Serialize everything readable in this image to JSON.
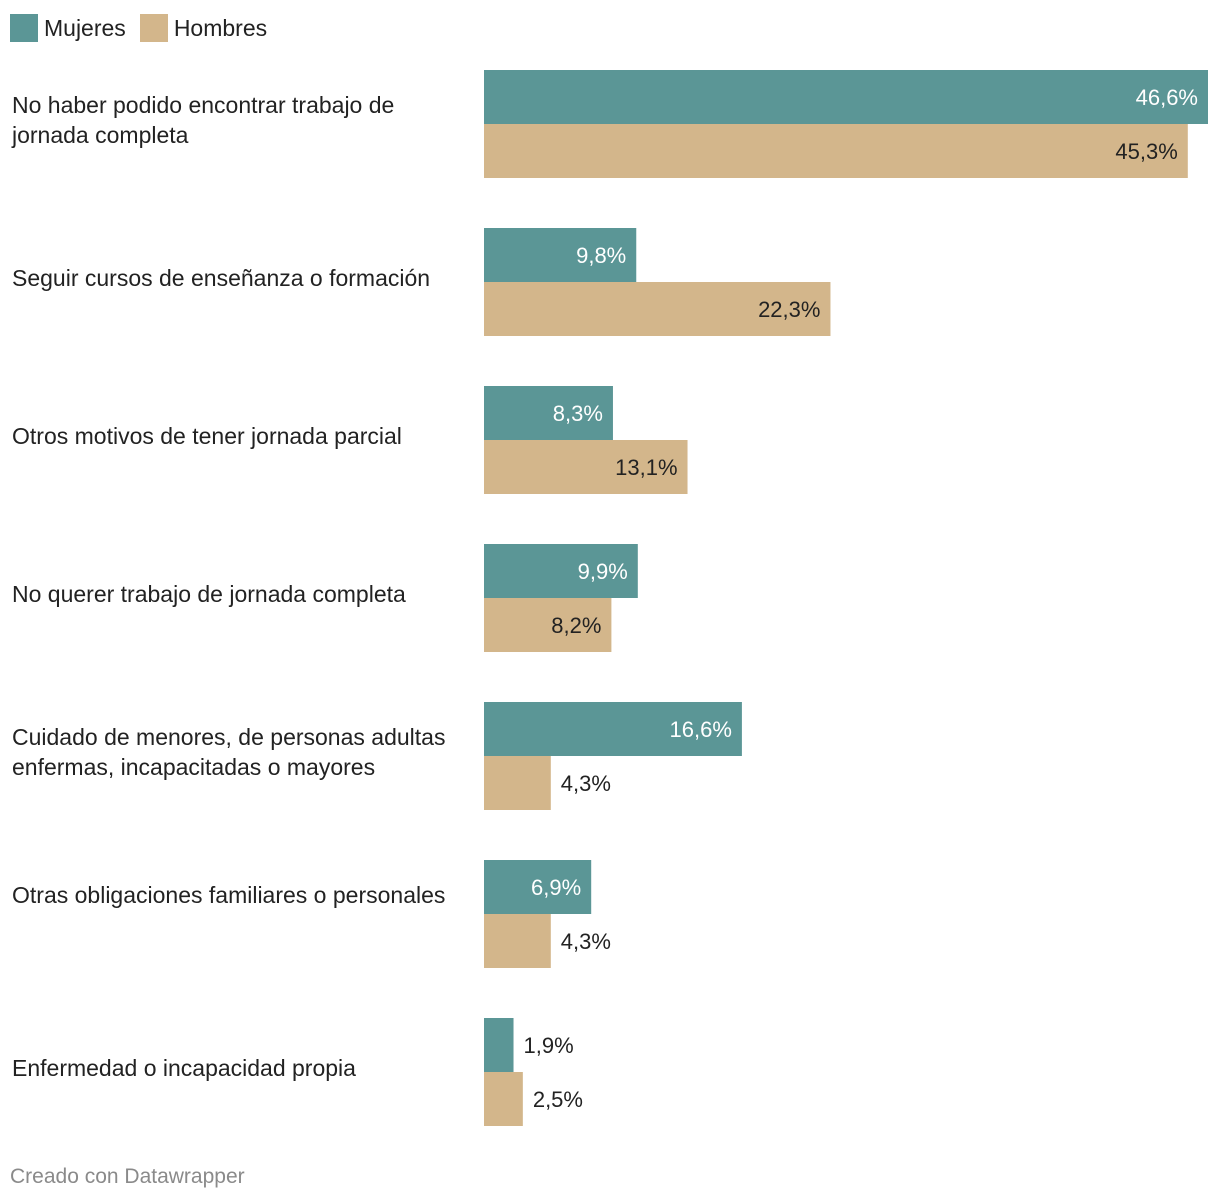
{
  "chart_data": {
    "type": "bar",
    "orientation": "horizontal",
    "legend": "top-left",
    "categories": [
      "No haber podido encontrar trabajo de jornada completa",
      "Seguir cursos de enseñanza o formación",
      "Otros motivos de tener jornada parcial",
      "No querer trabajo de jornada completa",
      "Cuidado de menores, de personas adultas enfermas, incapacitadas o mayores",
      "Otras obligaciones familiares o personales",
      "Enfermedad o incapacidad propia"
    ],
    "series": [
      {
        "name": "Mujeres",
        "color": "#5b9696",
        "values": [
          46.6,
          9.8,
          8.3,
          9.9,
          16.6,
          6.9,
          1.9
        ],
        "labels": [
          "46,6%",
          "9,8%",
          "8,3%",
          "9,9%",
          "16,6%",
          "6,9%",
          "1,9%"
        ]
      },
      {
        "name": "Hombres",
        "color": "#d3b68b",
        "values": [
          45.3,
          22.3,
          13.1,
          8.2,
          4.3,
          4.3,
          2.5
        ],
        "labels": [
          "45,3%",
          "22,3%",
          "13,1%",
          "8,2%",
          "4,3%",
          "4,3%",
          "2,5%"
        ]
      }
    ],
    "xlim": [
      0,
      46.6
    ],
    "grid": false,
    "title": "",
    "xlabel": "",
    "ylabel": ""
  },
  "footer": {
    "source": "Creado con Datawrapper"
  }
}
